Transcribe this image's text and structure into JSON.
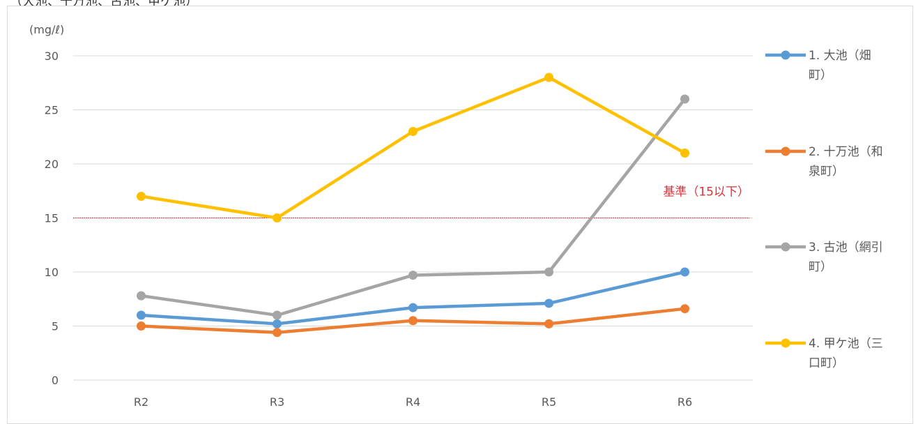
{
  "header_fragment": "（大池、十万池、古池、甲ケ池）",
  "chart_data": {
    "type": "line",
    "categories": [
      "R2",
      "R3",
      "R4",
      "R5",
      "R6"
    ],
    "yunit": "(mg/ℓ)",
    "ylim": [
      0,
      30
    ],
    "yticks": [
      "0",
      "5",
      "10",
      "15",
      "20",
      "25",
      "30"
    ],
    "grid": true,
    "legend_position": "right",
    "series": [
      {
        "name": "1. 大池（畑町）",
        "legend_lines": [
          "1. 大池（畑",
          "町）"
        ],
        "color": "#5b9bd5",
        "values": [
          6.0,
          5.2,
          6.7,
          7.1,
          10.0
        ]
      },
      {
        "name": "2. 十万池（和泉町）",
        "legend_lines": [
          "2. 十万池（和",
          "泉町）"
        ],
        "color": "#ed7d31",
        "values": [
          5.0,
          4.4,
          5.5,
          5.2,
          6.6
        ]
      },
      {
        "name": "3. 古池（網引町）",
        "legend_lines": [
          "3. 古池（網引",
          "町）"
        ],
        "color": "#a5a5a5",
        "values": [
          7.8,
          6.0,
          9.7,
          10.0,
          26.0
        ]
      },
      {
        "name": "4. 甲ケ池（三口町）",
        "legend_lines": [
          "4. 甲ケ池（三",
          "口町）"
        ],
        "color": "#ffc000",
        "values": [
          17.0,
          15.0,
          23.0,
          28.0,
          21.0
        ]
      }
    ],
    "reference": {
      "value": 15,
      "label": "基準（15以下）",
      "color": "#e0303a"
    }
  }
}
